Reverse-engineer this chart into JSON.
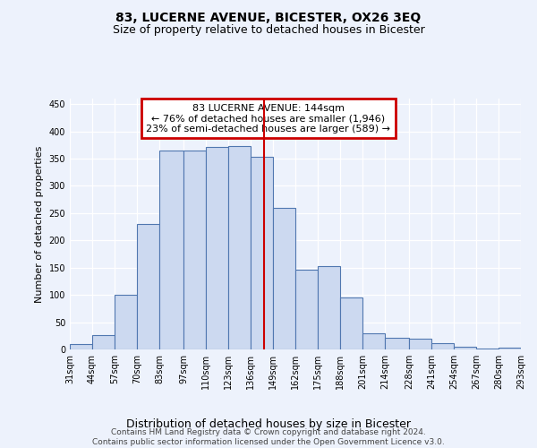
{
  "title": "83, LUCERNE AVENUE, BICESTER, OX26 3EQ",
  "subtitle": "Size of property relative to detached houses in Bicester",
  "xlabel": "Distribution of detached houses by size in Bicester",
  "ylabel": "Number of detached properties",
  "bar_color": "#ccd9f0",
  "bar_edge_color": "#5077b0",
  "background_color": "#edf2fc",
  "grid_color": "#ffffff",
  "vline_x": 144,
  "vline_color": "#cc0000",
  "annotation_text": "83 LUCERNE AVENUE: 144sqm\n← 76% of detached houses are smaller (1,946)\n23% of semi-detached houses are larger (589) →",
  "annotation_box_edgecolor": "#cc0000",
  "bin_edges": [
    31,
    44,
    57,
    70,
    83,
    97,
    110,
    123,
    136,
    149,
    162,
    175,
    188,
    201,
    214,
    228,
    241,
    254,
    267,
    280,
    293
  ],
  "bar_heights": [
    10,
    27,
    100,
    230,
    365,
    365,
    372,
    373,
    353,
    260,
    147,
    153,
    95,
    30,
    22,
    20,
    11,
    5,
    1,
    4
  ],
  "footer_text": "Contains HM Land Registry data © Crown copyright and database right 2024.\nContains public sector information licensed under the Open Government Licence v3.0.",
  "ylim": [
    0,
    460
  ],
  "yticks": [
    0,
    50,
    100,
    150,
    200,
    250,
    300,
    350,
    400,
    450
  ],
  "title_fontsize": 10,
  "subtitle_fontsize": 9,
  "ylabel_fontsize": 8,
  "xlabel_fontsize": 9,
  "tick_fontsize": 7,
  "footer_fontsize": 6.5,
  "annot_fontsize": 8
}
